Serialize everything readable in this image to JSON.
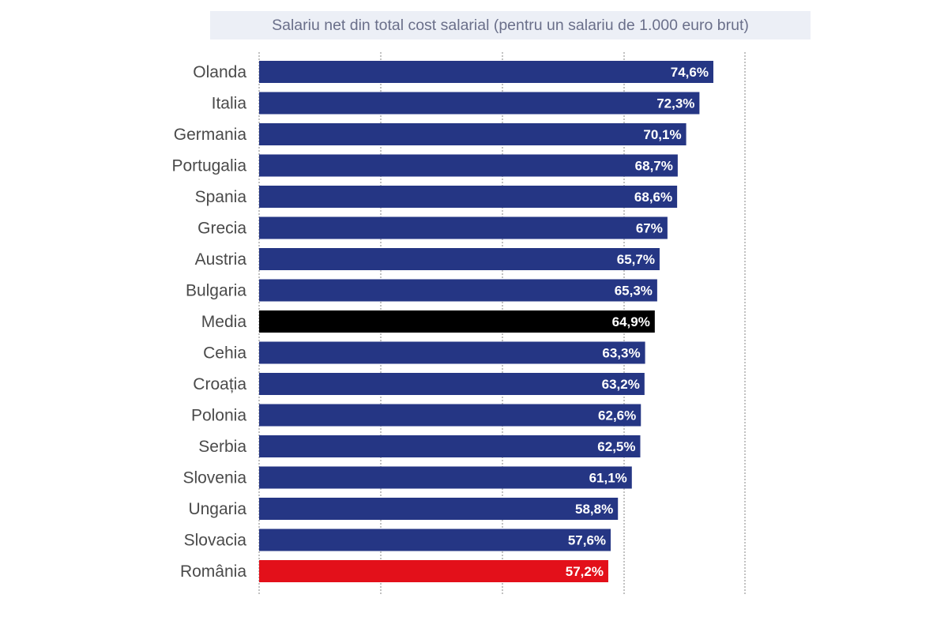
{
  "chart_data": {
    "type": "bar",
    "orientation": "horizontal",
    "title": "Salariu net din total cost salarial (pentru un salariu de 1.000 euro brut)",
    "xlabel": "",
    "ylabel": "",
    "grid": true,
    "categories": [
      "Olanda",
      "Italia",
      "Germania",
      "Portugalia",
      "Spania",
      "Grecia",
      "Austria",
      "Bulgaria",
      "Media",
      "Cehia",
      "Croația",
      "Polonia",
      "Serbia",
      "Slovenia",
      "Ungaria",
      "Slovacia",
      "România"
    ],
    "values": [
      74.6,
      72.3,
      70.1,
      68.7,
      68.6,
      67,
      65.7,
      65.3,
      64.9,
      63.3,
      63.2,
      62.6,
      62.5,
      61.1,
      58.8,
      57.6,
      57.2
    ],
    "value_labels": [
      "74,6%",
      "72,3%",
      "70,1%",
      "68,7%",
      "68,6%",
      "67%",
      "65,7%",
      "65,3%",
      "64,9%",
      "63,3%",
      "63,2%",
      "62,6%",
      "62,5%",
      "61,1%",
      "58,8%",
      "57,6%",
      "57,2%"
    ],
    "colors": {
      "default": "#253684",
      "Media": "#000000",
      "România": "#e3101a"
    },
    "unit": "%"
  }
}
